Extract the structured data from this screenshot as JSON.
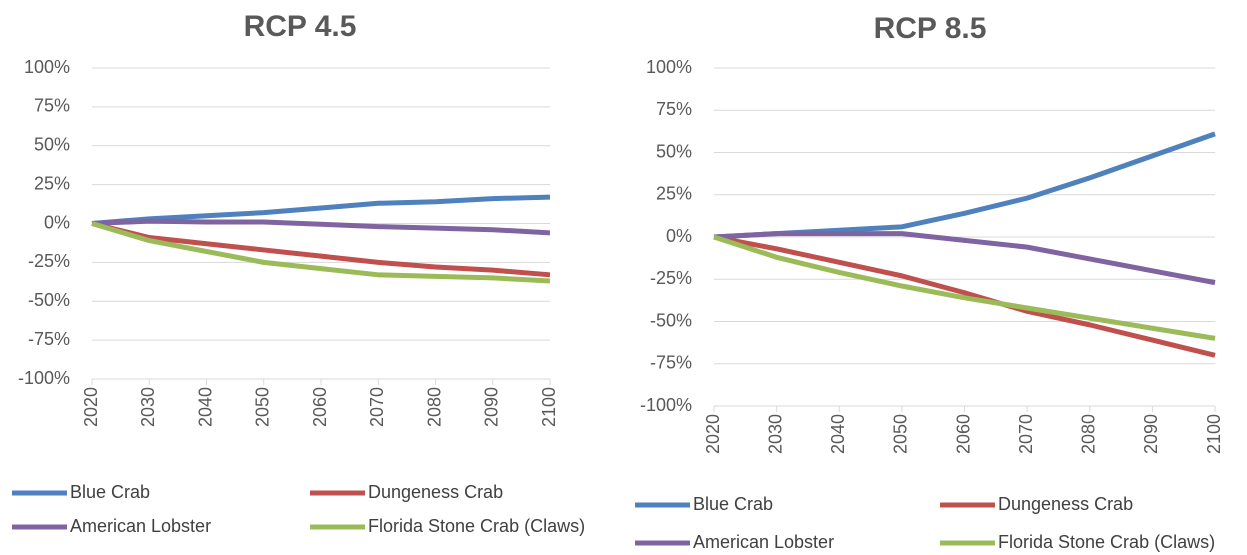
{
  "chart_data": [
    {
      "type": "line",
      "title": "RCP 4.5",
      "x": [
        2020,
        2030,
        2040,
        2050,
        2060,
        2070,
        2080,
        2090,
        2100
      ],
      "xlim": [
        2020,
        2100
      ],
      "xticks": [
        2020,
        2030,
        2040,
        2050,
        2060,
        2070,
        2080,
        2090,
        2100
      ],
      "ylim": [
        -100,
        100
      ],
      "yticks": [
        {
          "value": -100,
          "label": "-100%"
        },
        {
          "value": -75,
          "label": "-75%"
        },
        {
          "value": -50,
          "label": "-50%"
        },
        {
          "value": -25,
          "label": "-25%"
        },
        {
          "value": 0,
          "label": "0%"
        },
        {
          "value": 25,
          "label": "25%"
        },
        {
          "value": 50,
          "label": "50%"
        },
        {
          "value": 75,
          "label": "75%"
        },
        {
          "value": 100,
          "label": "100%"
        }
      ],
      "grid": true,
      "legend": "bottom",
      "series": [
        {
          "name": "Blue Crab",
          "color": "#4f81bd",
          "values": [
            0,
            3,
            5,
            7,
            10,
            13,
            14,
            16,
            17
          ]
        },
        {
          "name": "Dungeness Crab",
          "color": "#c0504d",
          "values": [
            0,
            -9,
            -13,
            -17,
            -21,
            -25,
            -28,
            -30,
            -33
          ]
        },
        {
          "name": "American Lobster",
          "color": "#8064a2",
          "values": [
            0,
            1.5,
            1,
            1,
            -0.5,
            -2,
            -3,
            -4,
            -6
          ]
        },
        {
          "name": "Florida Stone Crab (Claws)",
          "color": "#9bbb59",
          "values": [
            0,
            -11,
            -18,
            -25,
            -29,
            -33,
            -34,
            -35,
            -37
          ]
        }
      ]
    },
    {
      "type": "line",
      "title": "RCP 8.5",
      "x": [
        2020,
        2030,
        2040,
        2050,
        2060,
        2070,
        2080,
        2090,
        2100
      ],
      "xlim": [
        2020,
        2100
      ],
      "xticks": [
        2020,
        2030,
        2040,
        2050,
        2060,
        2070,
        2080,
        2090,
        2100
      ],
      "ylim": [
        -100,
        100
      ],
      "yticks": [
        {
          "value": -100,
          "label": "-100%"
        },
        {
          "value": -75,
          "label": "-75%"
        },
        {
          "value": -50,
          "label": "-50%"
        },
        {
          "value": -25,
          "label": "-25%"
        },
        {
          "value": 0,
          "label": "0%"
        },
        {
          "value": 25,
          "label": "25%"
        },
        {
          "value": 50,
          "label": "50%"
        },
        {
          "value": 75,
          "label": "75%"
        },
        {
          "value": 100,
          "label": "100%"
        }
      ],
      "grid": true,
      "legend": "bottom",
      "series": [
        {
          "name": "Blue Crab",
          "color": "#4f81bd",
          "values": [
            0,
            2,
            4,
            6,
            14,
            23,
            35,
            48,
            61
          ]
        },
        {
          "name": "Dungeness Crab",
          "color": "#c0504d",
          "values": [
            0,
            -7,
            -15,
            -23,
            -33,
            -44,
            -52,
            -61,
            -70
          ]
        },
        {
          "name": "American Lobster",
          "color": "#8064a2",
          "values": [
            0,
            2,
            2,
            2,
            -2,
            -6,
            -13,
            -20,
            -27
          ]
        },
        {
          "name": "Florida Stone Crab (Claws)",
          "color": "#9bbb59",
          "values": [
            0,
            -12,
            -21,
            -29,
            -36,
            -42,
            -48,
            -54,
            -60
          ]
        }
      ]
    }
  ]
}
